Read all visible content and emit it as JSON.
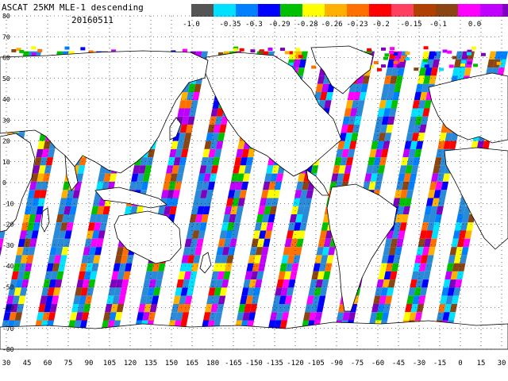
{
  "header": {
    "title": "ASCAT 25KM MLE-1 descending",
    "date": "20160511"
  },
  "colorbar": {
    "colors": [
      "#555555",
      "#00e0ff",
      "#0080ff",
      "#0000ff",
      "#00c000",
      "#ffff00",
      "#ffb000",
      "#ff7000",
      "#ff0000",
      "#ff4060",
      "#b04000",
      "#8b4513",
      "#ff00ff",
      "#c000ff",
      "#8000c0"
    ],
    "labels": [
      "-1.0",
      "-0.35",
      "-0.3",
      "-0.29",
      "-0.28",
      "-0.26",
      "-0.23",
      "-0.2",
      "-0.15",
      "-0.1",
      "0.0"
    ]
  },
  "map": {
    "lon_labels": [
      "30",
      "45",
      "60",
      "75",
      "90",
      "105",
      "120",
      "135",
      "150",
      "165",
      "180",
      "-165",
      "-150",
      "-135",
      "-120",
      "-105",
      "-90",
      "-75",
      "-60",
      "-45",
      "-30",
      "-15",
      "0",
      "15",
      "30"
    ],
    "lat_labels": [
      "80",
      "70",
      "60",
      "50",
      "40",
      "30",
      "20",
      "10",
      "0",
      "-10",
      "-20",
      "-30",
      "-40",
      "-50",
      "-60",
      "-70",
      "-80"
    ],
    "swath_palette": [
      "#ff00ff",
      "#c000ff",
      "#8000c0",
      "#ff0000",
      "#ffb000",
      "#ffff00",
      "#00c000",
      "#0080ff",
      "#00e0ff",
      "#ff7000",
      "#8b4513",
      "#0000ff"
    ],
    "blue_tone": "#2b8ad8"
  }
}
